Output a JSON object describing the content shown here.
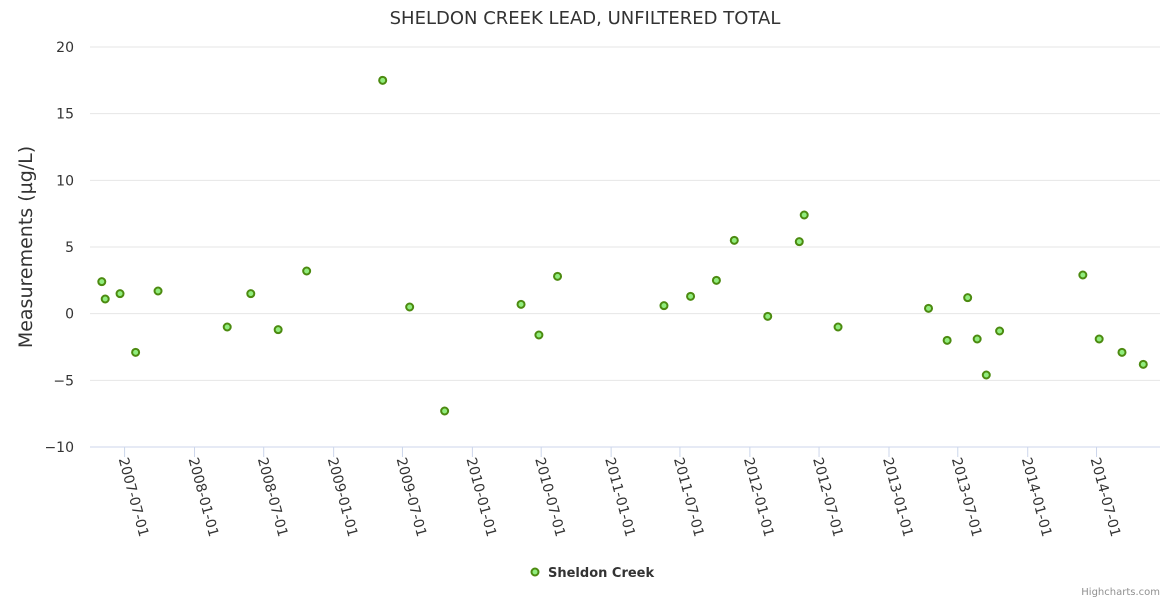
{
  "chart_data": {
    "type": "scatter",
    "title": "SHELDON CREEK LEAD, UNFILTERED TOTAL",
    "ylabel": "Measurements (µg/L)",
    "xlabel": "",
    "ylim": [
      -10,
      20
    ],
    "yticks": [
      20,
      15,
      10,
      5,
      0,
      -5,
      -10
    ],
    "ytick_labels": [
      "20",
      "15",
      "10",
      "5",
      "0",
      "−5",
      "−10"
    ],
    "xlim": [
      "2007-04-01",
      "2014-12-15"
    ],
    "xticks": [
      "2007-07-01",
      "2008-01-01",
      "2008-07-01",
      "2009-01-01",
      "2009-07-01",
      "2010-01-01",
      "2010-07-01",
      "2011-01-01",
      "2011-07-01",
      "2012-01-01",
      "2012-07-01",
      "2013-01-01",
      "2013-07-01",
      "2014-01-01",
      "2014-07-01"
    ],
    "grid": true,
    "legend_position": "bottom-center",
    "series": [
      {
        "name": "Sheldon Creek",
        "color": "#90ed7d",
        "outline": "#4c8a10",
        "points": [
          {
            "x": "2007-05-02",
            "y": 2.4
          },
          {
            "x": "2007-05-11",
            "y": 1.1
          },
          {
            "x": "2007-06-19",
            "y": 1.5
          },
          {
            "x": "2007-07-30",
            "y": -2.9
          },
          {
            "x": "2007-09-27",
            "y": 1.7
          },
          {
            "x": "2008-03-27",
            "y": -1.0
          },
          {
            "x": "2008-05-28",
            "y": 1.5
          },
          {
            "x": "2008-08-08",
            "y": -1.2
          },
          {
            "x": "2008-10-22",
            "y": 3.2
          },
          {
            "x": "2009-05-10",
            "y": 17.5
          },
          {
            "x": "2009-07-20",
            "y": 0.5
          },
          {
            "x": "2009-10-20",
            "y": -7.3
          },
          {
            "x": "2010-05-09",
            "y": 0.7
          },
          {
            "x": "2010-06-25",
            "y": -1.6
          },
          {
            "x": "2010-08-13",
            "y": 2.8
          },
          {
            "x": "2011-05-20",
            "y": 0.6
          },
          {
            "x": "2011-07-29",
            "y": 1.3
          },
          {
            "x": "2011-10-05",
            "y": 2.5
          },
          {
            "x": "2011-11-21",
            "y": 5.5
          },
          {
            "x": "2012-02-17",
            "y": -0.2
          },
          {
            "x": "2012-05-10",
            "y": 5.4
          },
          {
            "x": "2012-05-23",
            "y": 7.4
          },
          {
            "x": "2012-08-20",
            "y": -1.0
          },
          {
            "x": "2013-04-15",
            "y": 0.4
          },
          {
            "x": "2013-06-03",
            "y": -2.0
          },
          {
            "x": "2013-07-27",
            "y": 1.2
          },
          {
            "x": "2013-08-21",
            "y": -1.9
          },
          {
            "x": "2013-09-14",
            "y": -4.6
          },
          {
            "x": "2013-10-19",
            "y": -1.3
          },
          {
            "x": "2014-05-26",
            "y": 2.9
          },
          {
            "x": "2014-07-08",
            "y": -1.9
          },
          {
            "x": "2014-09-06",
            "y": -2.9
          },
          {
            "x": "2014-11-01",
            "y": -3.8
          }
        ]
      }
    ],
    "credits": "Highcharts.com"
  }
}
